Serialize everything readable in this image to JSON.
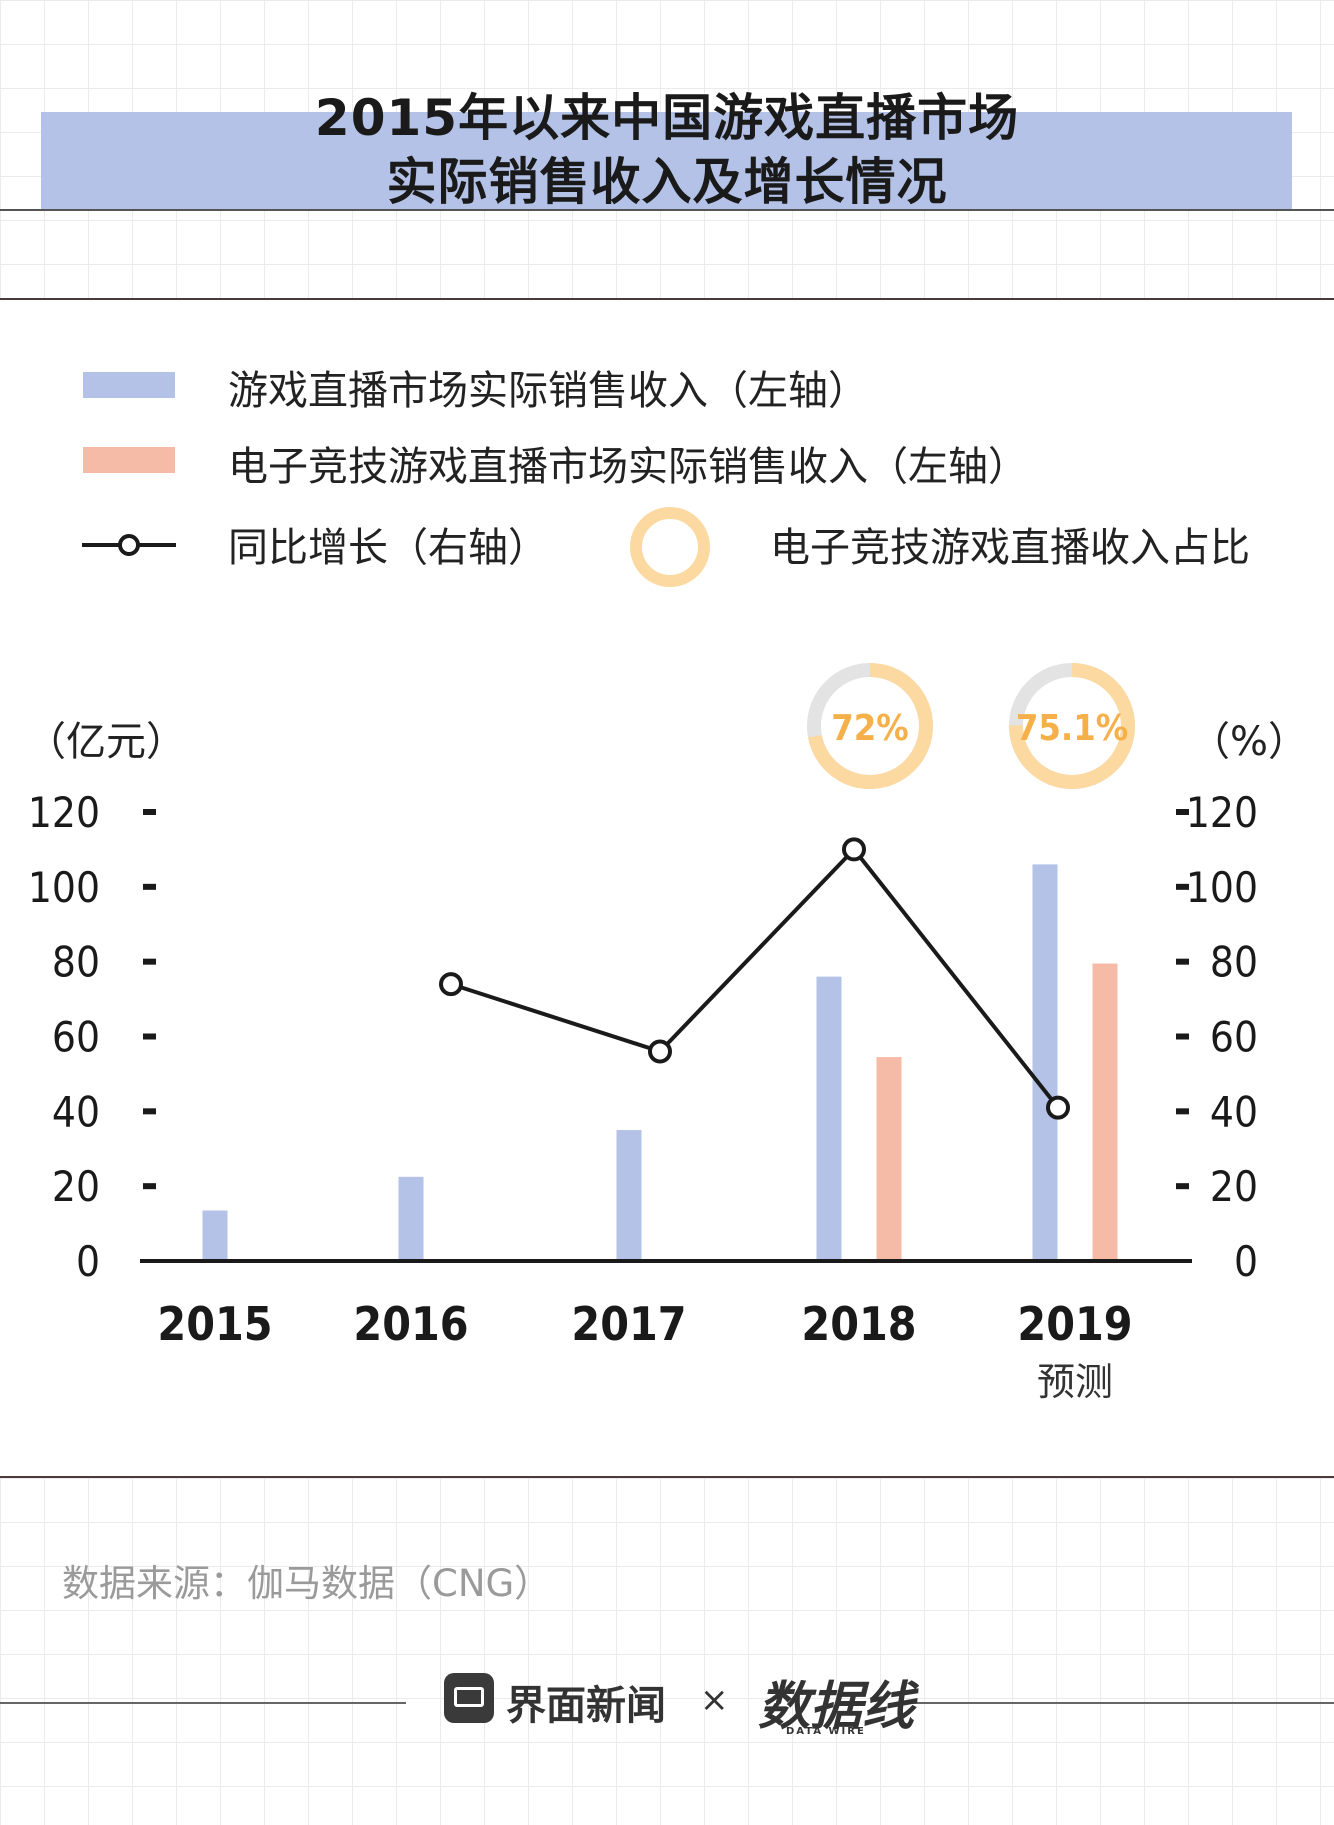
{
  "title": {
    "line1": "2015年以来中国游戏直播市场",
    "line2": "实际销售收入及增长情况"
  },
  "legend": {
    "items": [
      {
        "label": "游戏直播市场实际销售收入（左轴）",
        "color": "#b3c2e6"
      },
      {
        "label": "电子竞技游戏直播市场实际销售收入（左轴）",
        "color": "#f6bba6"
      },
      {
        "label": "同比增长（右轴）",
        "color": "#1a1a1a"
      },
      {
        "label": "电子竞技游戏直播收入占比",
        "color": "#fcd9a0"
      }
    ]
  },
  "chart_data": {
    "type": "bar",
    "categories": [
      "2015",
      "2016",
      "2017",
      "2018",
      "2019"
    ],
    "category_sublabels": [
      "",
      "",
      "",
      "",
      "预测"
    ],
    "series": [
      {
        "name": "游戏直播市场实际销售收入（左轴）",
        "values": [
          13.5,
          22.5,
          35,
          76,
          106
        ],
        "color": "#b3c2e6",
        "axis": "left"
      },
      {
        "name": "电子竞技游戏直播市场实际销售收入（左轴）",
        "values": [
          null,
          null,
          null,
          54.5,
          79.5
        ],
        "color": "#f6bba6",
        "axis": "left"
      },
      {
        "name": "同比增长（右轴）",
        "type": "line",
        "values": [
          null,
          74,
          56,
          110,
          41
        ],
        "color": "#1a1a1a",
        "axis": "right"
      }
    ],
    "share_annotations": [
      {
        "category": "2018",
        "value": 72,
        "label": "72%"
      },
      {
        "category": "2019",
        "value": 75.1,
        "label": "75.1%"
      }
    ],
    "left_axis": {
      "label": "（亿元）",
      "ticks": [
        "0",
        "20",
        "40",
        "60",
        "80",
        "100",
        "120"
      ],
      "ylim": [
        0,
        120
      ]
    },
    "right_axis": {
      "label": "（%）",
      "ticks": [
        "0",
        "20",
        "40",
        "60",
        "80",
        "100",
        "120"
      ],
      "ylim": [
        0,
        120
      ]
    },
    "grid": false,
    "legend_position": "top"
  },
  "source": "数据来源：伽马数据（CNG）",
  "footer": {
    "brand": "界面新闻",
    "separator": "×",
    "partner": "数据线",
    "partner_sub": "DATA WIRE"
  }
}
